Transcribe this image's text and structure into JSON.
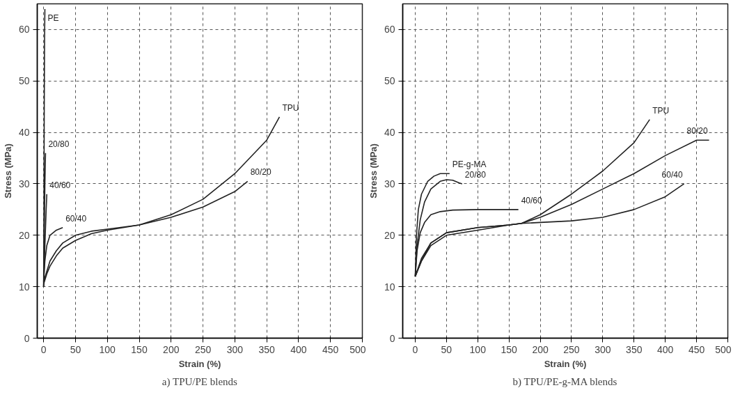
{
  "chart_data": [
    {
      "type": "line",
      "title": "a) TPU/PE blends",
      "xlabel": "Strain (%)",
      "ylabel": "Stress (MPa)",
      "xlim": [
        -10,
        500
      ],
      "ylim": [
        0,
        65
      ],
      "xticks": [
        0,
        50,
        100,
        150,
        200,
        250,
        300,
        350,
        400,
        450,
        500
      ],
      "yticks": [
        0,
        10,
        20,
        30,
        40,
        50,
        60
      ],
      "grid": true,
      "legend": false,
      "marker": "none",
      "line_style": "solid",
      "series": [
        {
          "name": "PE",
          "color": "#222222",
          "x": [
            0,
            0.5,
            1,
            1.5,
            2
          ],
          "values": [
            10,
            25,
            45,
            58,
            64
          ]
        },
        {
          "name": "20/80",
          "color": "#222222",
          "x": [
            0,
            1,
            2,
            3
          ],
          "values": [
            10,
            20,
            30,
            36
          ]
        },
        {
          "name": "40/60",
          "color": "#222222",
          "x": [
            0,
            2,
            4,
            5
          ],
          "values": [
            10,
            18,
            25,
            28
          ]
        },
        {
          "name": "60/40",
          "color": "#222222",
          "x": [
            0,
            2,
            5,
            10,
            20,
            30
          ],
          "values": [
            11,
            15,
            18,
            20,
            21,
            21.5
          ]
        },
        {
          "name": "TPU",
          "color": "#222222",
          "x": [
            0,
            5,
            10,
            20,
            30,
            50,
            75,
            100,
            150,
            200,
            250,
            300,
            350,
            370
          ],
          "values": [
            11,
            13,
            15,
            17,
            18.5,
            20,
            20.8,
            21.2,
            22,
            24,
            27,
            32,
            38.5,
            43
          ]
        },
        {
          "name": "80/20",
          "color": "#222222",
          "x": [
            0,
            5,
            10,
            20,
            30,
            50,
            75,
            100,
            150,
            200,
            250,
            300,
            320
          ],
          "values": [
            10.5,
            12.5,
            14,
            16,
            17.5,
            19,
            20.3,
            21,
            22,
            23.5,
            25.5,
            28.5,
            30.5
          ]
        }
      ]
    },
    {
      "type": "line",
      "title": "b) TPU/PE-g-MA blends",
      "xlabel": "Strain (%)",
      "ylabel": "Stress (MPa)",
      "xlim": [
        -20,
        500
      ],
      "ylim": [
        0,
        65
      ],
      "xticks": [
        0,
        50,
        100,
        150,
        200,
        250,
        300,
        350,
        400,
        450,
        500
      ],
      "yticks": [
        0,
        10,
        20,
        30,
        40,
        50,
        60
      ],
      "grid": true,
      "legend": false,
      "marker": "none",
      "line_style": "solid",
      "series": [
        {
          "name": "PE-g-MA",
          "color": "#222222",
          "x": [
            0,
            2,
            5,
            10,
            20,
            30,
            40,
            55
          ],
          "values": [
            12,
            20,
            25,
            28,
            30.5,
            31.5,
            32,
            32
          ]
        },
        {
          "name": "20/80",
          "color": "#222222",
          "x": [
            0,
            3,
            8,
            15,
            25,
            40,
            50,
            60,
            70,
            75
          ],
          "values": [
            12,
            18,
            23,
            26.5,
            29,
            30.5,
            30.8,
            30.7,
            30.2,
            30
          ]
        },
        {
          "name": "40/60",
          "color": "#222222",
          "x": [
            0,
            3,
            8,
            15,
            25,
            40,
            60,
            100,
            165
          ],
          "values": [
            12,
            17,
            20.5,
            22.5,
            24,
            24.6,
            24.9,
            25,
            25
          ]
        },
        {
          "name": "TPU",
          "color": "#222222",
          "x": [
            0,
            10,
            25,
            50,
            100,
            150,
            170,
            200,
            250,
            300,
            350,
            375
          ],
          "values": [
            12,
            15.5,
            18.5,
            20.5,
            21.5,
            22,
            22.3,
            24,
            28,
            32.5,
            38,
            42.5
          ]
        },
        {
          "name": "80/20",
          "color": "#222222",
          "x": [
            0,
            10,
            25,
            50,
            100,
            150,
            170,
            200,
            250,
            300,
            350,
            400,
            450,
            470
          ],
          "values": [
            12,
            15,
            18,
            20,
            21,
            22,
            22.3,
            23.5,
            26,
            29,
            32,
            35.5,
            38.5,
            38.5
          ]
        },
        {
          "name": "60/40",
          "color": "#222222",
          "x": [
            0,
            10,
            25,
            50,
            100,
            150,
            170,
            200,
            250,
            300,
            350,
            400,
            430
          ],
          "values": [
            12,
            15,
            18.5,
            20.5,
            21.5,
            22,
            22.3,
            22.5,
            22.8,
            23.5,
            25,
            27.5,
            30
          ]
        }
      ]
    }
  ]
}
